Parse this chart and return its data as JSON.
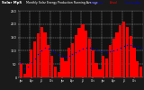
{
  "title1": "Solar MpS",
  "title2": "Monthly Solar Energy Production Running Average",
  "legend": [
    {
      "label": "Estimated",
      "color": "#0000dd"
    },
    {
      "label": "Actual",
      "color": "#ff0000"
    },
    {
      "label": "Running Avg",
      "color": "#0000dd"
    }
  ],
  "bar_color": "#ff0000",
  "avg_color": "#0000cc",
  "background_color": "#1a1a1a",
  "plot_bg": "#111111",
  "grid_color": "#ffffff",
  "values": [
    55,
    15,
    50,
    105,
    135,
    165,
    190,
    170,
    120,
    80,
    40,
    20,
    75,
    60,
    110,
    130,
    160,
    185,
    200,
    175,
    145,
    100,
    55,
    30,
    80,
    70,
    120,
    145,
    170,
    195,
    210,
    190,
    155,
    110,
    60,
    40
  ],
  "running_avg": [
    55,
    35,
    40,
    56,
    72,
    88,
    103,
    111,
    107,
    102,
    94,
    85,
    82,
    79,
    82,
    87,
    93,
    100,
    107,
    110,
    110,
    108,
    104,
    99,
    97,
    95,
    97,
    101,
    106,
    112,
    118,
    121,
    120,
    119,
    116,
    113
  ],
  "ylim": [
    0,
    250
  ],
  "ytick_labels": [
    "0",
    "50",
    "100",
    "150",
    "200",
    "250"
  ],
  "ytick_vals": [
    0,
    50,
    100,
    150,
    200,
    250
  ],
  "xtick_step": 3,
  "n_bars": 36,
  "months_labels": [
    "Jan",
    "",
    "",
    "Apr",
    "",
    "",
    "Jul",
    "",
    "",
    "Oct",
    "",
    "",
    "Jan",
    "",
    "",
    "Apr",
    "",
    "",
    "Jul",
    "",
    "",
    "Oct",
    "",
    "",
    "Jan",
    "",
    "",
    "Apr",
    "",
    "",
    "Jul",
    "",
    "",
    "Oct",
    "",
    ""
  ]
}
